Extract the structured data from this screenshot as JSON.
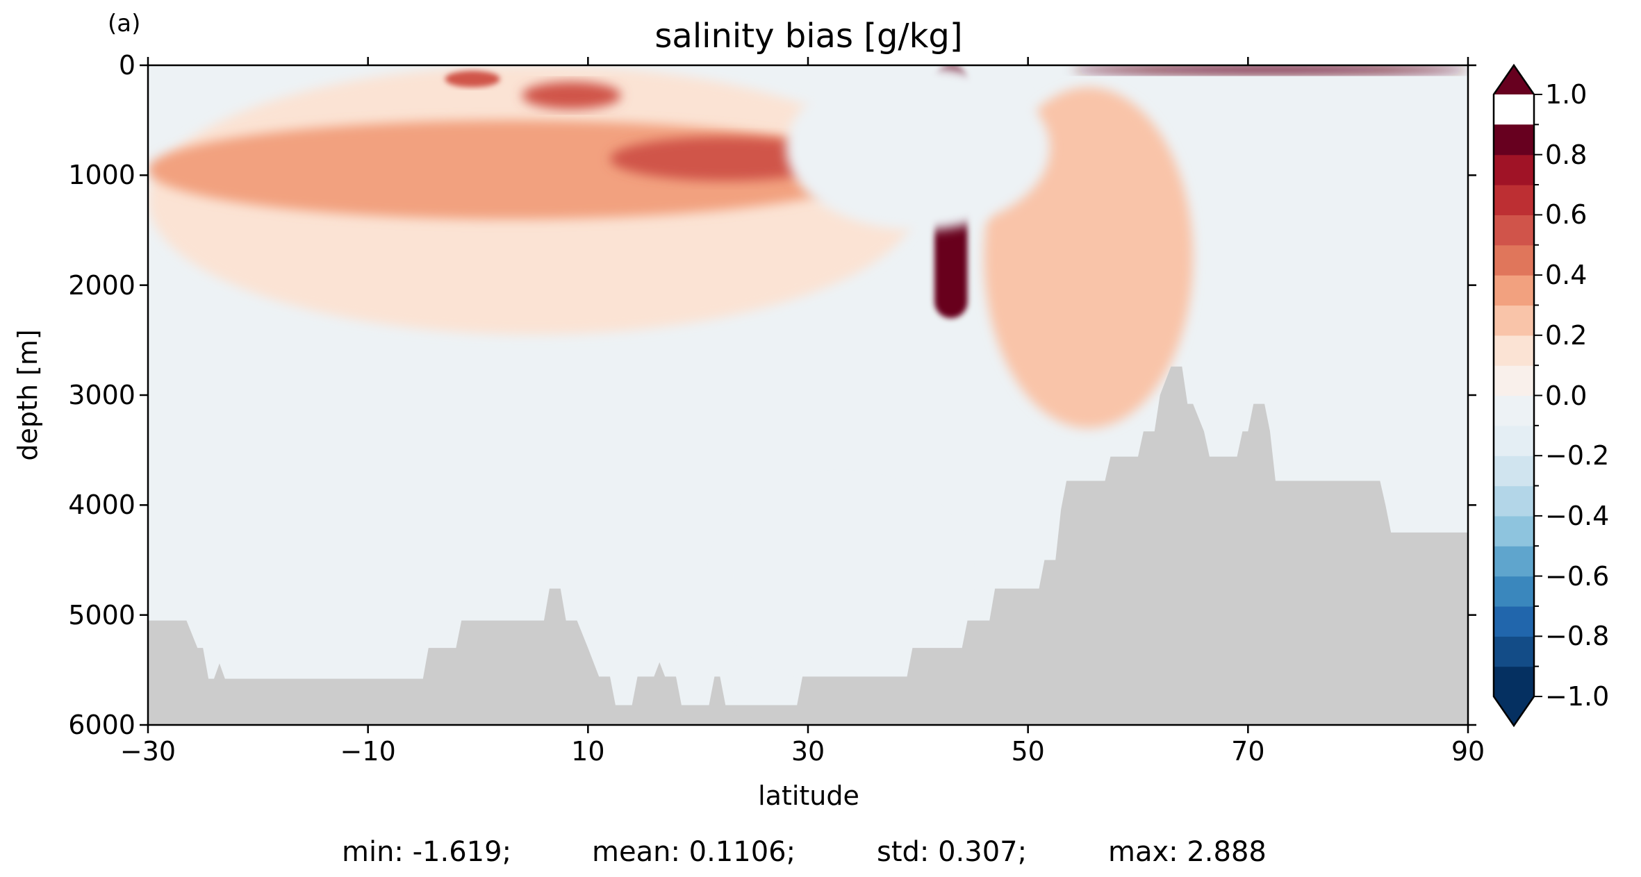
{
  "panel_label": "(a)",
  "stats": {
    "min": "min: -1.619;",
    "mean": "mean: 0.1106;",
    "std": "std: 0.307;",
    "max": "max: 2.888"
  },
  "chart_data": {
    "type": "heatmap",
    "title": "salinity bias [g/kg]",
    "xlabel": "latitude",
    "ylabel": "depth [m]",
    "xlim": [
      -30,
      90
    ],
    "ylim": [
      6000,
      0
    ],
    "x_ticks": [
      -30,
      -10,
      10,
      30,
      50,
      70,
      90
    ],
    "x_tick_labels": [
      "−30",
      "−10",
      "10",
      "30",
      "50",
      "70",
      "90"
    ],
    "y_ticks": [
      0,
      1000,
      2000,
      3000,
      4000,
      5000,
      6000
    ],
    "y_tick_labels": [
      "0",
      "1000",
      "2000",
      "3000",
      "4000",
      "5000",
      "6000"
    ],
    "colorbar": {
      "min": -1.0,
      "max": 1.0,
      "step": 0.1,
      "extend": "both",
      "tick_values": [
        1.0,
        0.8,
        0.6,
        0.4,
        0.2,
        0.0,
        -0.2,
        -0.4,
        -0.6,
        -0.8,
        -1.0
      ],
      "tick_labels": [
        "1.0",
        "0.8",
        "0.6",
        "0.4",
        "0.2",
        "0.0",
        "−0.2",
        "−0.4",
        "−0.6",
        "−0.8",
        "−1.0"
      ],
      "colors": [
        "#053061",
        "#134c87",
        "#2166ac",
        "#3a87bd",
        "#5fa5cd",
        "#8ec4de",
        "#b3d6e8",
        "#d0e4ef",
        "#e4eef4",
        "#edf2f5",
        "#f9f0eb",
        "#fbe3d4",
        "#f9c4a9",
        "#f2a17f",
        "#e0765b",
        "#d0544a",
        "#bd2f33",
        "#a01326",
        "#67001f"
      ],
      "over_color": "#67001f",
      "under_color": "#053061"
    },
    "background_color": "#edf2f5",
    "land_color": "#cccccc",
    "bathymetry": [
      [
        -30,
        5050
      ],
      [
        -26.5,
        5050
      ],
      [
        -25.5,
        5300
      ],
      [
        -25,
        5300
      ],
      [
        -24.5,
        5580
      ],
      [
        -30,
        5580
      ],
      [
        -24,
        5580
      ],
      [
        -23.5,
        5440
      ],
      [
        -23,
        5580
      ],
      [
        -5,
        5580
      ],
      [
        -4.5,
        5300
      ],
      [
        -2,
        5300
      ],
      [
        -1.5,
        5050
      ],
      [
        6,
        5050
      ],
      [
        6.5,
        4760
      ],
      [
        7.5,
        4760
      ],
      [
        8,
        5050
      ],
      [
        9,
        5050
      ],
      [
        10,
        5300
      ],
      [
        11,
        5560
      ],
      [
        12,
        5560
      ],
      [
        12.5,
        5820
      ],
      [
        14,
        5820
      ],
      [
        14.5,
        5560
      ],
      [
        16,
        5560
      ],
      [
        16.5,
        5430
      ],
      [
        17,
        5560
      ],
      [
        18,
        5560
      ],
      [
        18.5,
        5820
      ],
      [
        21,
        5820
      ],
      [
        21.5,
        5560
      ],
      [
        22,
        5560
      ],
      [
        22.5,
        5820
      ],
      [
        29,
        5820
      ],
      [
        29.5,
        5560
      ],
      [
        39,
        5560
      ],
      [
        39.5,
        5300
      ],
      [
        44,
        5300
      ],
      [
        44.5,
        5050
      ],
      [
        46.5,
        5050
      ],
      [
        47,
        4760
      ],
      [
        51,
        4760
      ],
      [
        51.5,
        4500
      ],
      [
        52.5,
        4500
      ],
      [
        53,
        4040
      ],
      [
        53.5,
        3780
      ],
      [
        57,
        3780
      ],
      [
        57.5,
        3560
      ],
      [
        60,
        3560
      ],
      [
        60.5,
        3330
      ],
      [
        61.5,
        3330
      ],
      [
        62,
        3000
      ],
      [
        63,
        2740
      ],
      [
        64,
        2740
      ],
      [
        64.5,
        3080
      ],
      [
        65,
        3080
      ],
      [
        66,
        3330
      ],
      [
        66.5,
        3560
      ],
      [
        69,
        3560
      ],
      [
        69.5,
        3330
      ],
      [
        70,
        3330
      ],
      [
        70.5,
        3080
      ],
      [
        71.5,
        3080
      ],
      [
        72,
        3330
      ],
      [
        72.5,
        3780
      ],
      [
        82,
        3780
      ],
      [
        82.5,
        4000
      ],
      [
        83,
        4250
      ],
      [
        90,
        4250
      ]
    ],
    "bias_regions": [
      {
        "id": "shallow-positive-band",
        "value": 0.15,
        "lat": [
          -30,
          40
        ],
        "depth": [
          0,
          2450
        ]
      },
      {
        "id": "intermediate-positive-band",
        "value": 0.3,
        "lat": [
          -30,
          36
        ],
        "depth": [
          500,
          1400
        ]
      },
      {
        "id": "core-positive",
        "value": 0.5,
        "lat": [
          12,
          33
        ],
        "depth": [
          650,
          1050
        ]
      },
      {
        "id": "surface-positive-patch",
        "value": 0.5,
        "lat": [
          4,
          13
        ],
        "depth": [
          150,
          400
        ]
      },
      {
        "id": "surface-positive-patch-2",
        "value": 0.5,
        "lat": [
          -3,
          2
        ],
        "depth": [
          50,
          200
        ]
      },
      {
        "id": "mediterranean-outflow",
        "value": 1.0,
        "lat": [
          41.5,
          44.5
        ],
        "depth": [
          0,
          2300
        ]
      },
      {
        "id": "north-atlantic-positive",
        "value": 0.2,
        "lat": [
          46,
          65
        ],
        "depth": [
          200,
          3300
        ]
      },
      {
        "id": "arctic-surface-positive",
        "value": 1.0,
        "lat": [
          54,
          90
        ],
        "depth": [
          0,
          80
        ]
      },
      {
        "id": "subtropical-negative-near-surface",
        "value": -0.1,
        "lat": [
          28,
          52
        ],
        "depth": [
          0,
          1500
        ]
      },
      {
        "id": "deep-negative",
        "value": -0.1,
        "lat": [
          22,
          44
        ],
        "depth": [
          3800,
          5500
        ]
      }
    ]
  }
}
